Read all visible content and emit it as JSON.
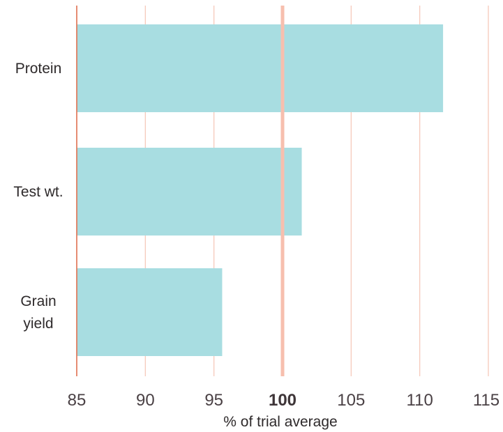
{
  "chart_data": {
    "type": "bar",
    "orientation": "horizontal",
    "categories": [
      "Protein",
      "Test wt.",
      "Grain yield"
    ],
    "category_lines": [
      [
        "Protein"
      ],
      [
        "Test wt."
      ],
      [
        "Grain",
        "yield"
      ]
    ],
    "values": [
      111.7,
      101.4,
      95.6
    ],
    "xlabel": "% of trial average",
    "xlim": [
      85,
      115
    ],
    "xticks": [
      85,
      90,
      95,
      100,
      105,
      110,
      115
    ],
    "highlight_tick": 100,
    "grid": true,
    "colors": {
      "bar": "#a8dde1",
      "grid": "#f6c9bb",
      "reference_line": "#f7bfae",
      "axis_line": "#e0704f"
    }
  }
}
